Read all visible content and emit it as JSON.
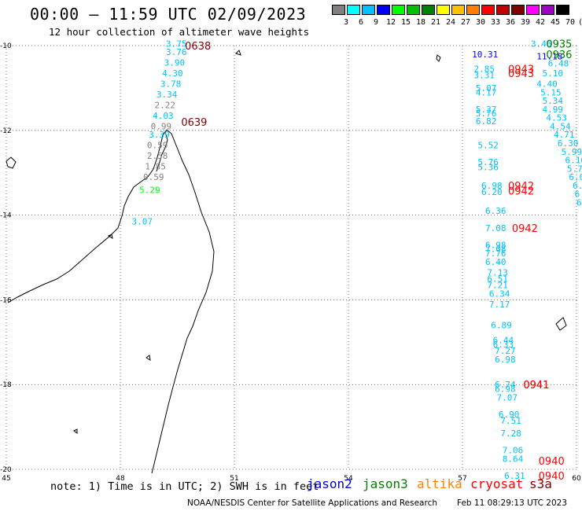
{
  "title": "00:00 – 11:59 UTC 02/09/2023",
  "subtitle": "12 hour collection of altimeter wave heights",
  "color_scale": {
    "colors": [
      "#808080",
      "#00ffff",
      "#00c0ff",
      "#0000ff",
      "#00ff00",
      "#00c000",
      "#008000",
      "#ffff00",
      "#ffc000",
      "#ff8000",
      "#ff0000",
      "#c00000",
      "#800000",
      "#ff00ff",
      "#a000c0",
      "#000000"
    ],
    "labels": [
      "3",
      "6",
      "9",
      "12",
      "15",
      "18",
      "21",
      "24",
      "27",
      "30",
      "33",
      "36",
      "39",
      "42",
      "45",
      "70",
      "(ft)"
    ]
  },
  "axes": {
    "lon_ticks": [
      "45",
      "48",
      "51",
      "54",
      "57",
      "60"
    ],
    "lat_ticks": [
      "-10",
      "-12",
      "-14",
      "-16",
      "-18",
      "-20"
    ]
  },
  "chart_data": {
    "type": "scatter",
    "x_range": [
      45,
      60
    ],
    "y_range": [
      -20,
      -10
    ],
    "track_labels": [
      {
        "text": "0638",
        "lon": 49.7,
        "lat": -10.0,
        "color": "#800000"
      },
      {
        "text": "0639",
        "lon": 49.6,
        "lat": -11.8,
        "color": "#800000"
      },
      {
        "text": "0935",
        "lon": 59.2,
        "lat": -9.95,
        "color": "#008000"
      },
      {
        "text": "0936",
        "lon": 59.2,
        "lat": -10.2,
        "color": "#008000"
      },
      {
        "text": "0943",
        "lon": 58.2,
        "lat": -10.55,
        "color": "#ff0000"
      },
      {
        "text": "0943",
        "lon": 58.2,
        "lat": -10.65,
        "color": "#ff0000"
      },
      {
        "text": "0942",
        "lon": 58.2,
        "lat": -13.3,
        "color": "#ff0000"
      },
      {
        "text": "0942",
        "lon": 58.2,
        "lat": -13.42,
        "color": "#ff0000"
      },
      {
        "text": "0942",
        "lon": 58.3,
        "lat": -14.3,
        "color": "#ff0000"
      },
      {
        "text": "0941",
        "lon": 58.6,
        "lat": -18.0,
        "color": "#ff0000"
      },
      {
        "text": "0941",
        "lon": 58.6,
        "lat": -18.0,
        "color": "#ff0000"
      },
      {
        "text": "0940",
        "lon": 59.0,
        "lat": -19.8,
        "color": "#ff0000"
      },
      {
        "text": "0940",
        "lon": 59.0,
        "lat": -20.15,
        "color": "#ff0000"
      }
    ],
    "wave_heights": [
      {
        "v": "3.75",
        "lon": 49.2,
        "lat": -9.95,
        "c": "#00c0ff"
      },
      {
        "v": "3.76",
        "lon": 49.2,
        "lat": -10.15,
        "c": "#00c0ff"
      },
      {
        "v": "3.90",
        "lon": 49.15,
        "lat": -10.4,
        "c": "#00c0ff"
      },
      {
        "v": "4.30",
        "lon": 49.1,
        "lat": -10.65,
        "c": "#00c0ff"
      },
      {
        "v": "3.78",
        "lon": 49.05,
        "lat": -10.9,
        "c": "#00c0ff"
      },
      {
        "v": "3.34",
        "lon": 48.95,
        "lat": -11.15,
        "c": "#00c0ff"
      },
      {
        "v": "2.22",
        "lon": 48.9,
        "lat": -11.4,
        "c": "#808080"
      },
      {
        "v": "4.03",
        "lon": 48.85,
        "lat": -11.65,
        "c": "#00c0ff"
      },
      {
        "v": "0.99",
        "lon": 48.8,
        "lat": -11.9,
        "c": "#808080"
      },
      {
        "v": "3.39",
        "lon": 48.75,
        "lat": -12.1,
        "c": "#00c0ff"
      },
      {
        "v": "0.59",
        "lon": 48.7,
        "lat": -12.35,
        "c": "#808080"
      },
      {
        "v": "2.58",
        "lon": 48.7,
        "lat": -12.6,
        "c": "#808080"
      },
      {
        "v": "1.85",
        "lon": 48.65,
        "lat": -12.85,
        "c": "#808080"
      },
      {
        "v": "0.59",
        "lon": 48.6,
        "lat": -13.1,
        "c": "#808080"
      },
      {
        "v": "5.29",
        "lon": 48.5,
        "lat": -13.4,
        "c": "#00ff00"
      },
      {
        "v": "3.07",
        "lon": 48.3,
        "lat": -14.15,
        "c": "#00c0ff"
      },
      {
        "v": "3.46",
        "lon": 58.8,
        "lat": -9.95,
        "c": "#00c0ff"
      },
      {
        "v": "10.31",
        "lon": 57.25,
        "lat": -10.2,
        "c": "#0000ff"
      },
      {
        "v": "11.18",
        "lon": 58.95,
        "lat": -10.25,
        "c": "#0000ff"
      },
      {
        "v": "6.48",
        "lon": 59.25,
        "lat": -10.42,
        "c": "#00c0ff"
      },
      {
        "v": "2.85",
        "lon": 57.3,
        "lat": -10.55,
        "c": "#00c0ff"
      },
      {
        "v": "3.31",
        "lon": 57.3,
        "lat": -10.7,
        "c": "#00c0ff"
      },
      {
        "v": "5.10",
        "lon": 59.1,
        "lat": -10.65,
        "c": "#00c0ff"
      },
      {
        "v": "4.40",
        "lon": 58.95,
        "lat": -10.9,
        "c": "#00c0ff"
      },
      {
        "v": "5.07",
        "lon": 57.35,
        "lat": -11.0,
        "c": "#00c0ff"
      },
      {
        "v": "4.17",
        "lon": 57.35,
        "lat": -11.1,
        "c": "#00c0ff"
      },
      {
        "v": "5.15",
        "lon": 59.05,
        "lat": -11.1,
        "c": "#00c0ff"
      },
      {
        "v": "5.34",
        "lon": 59.1,
        "lat": -11.3,
        "c": "#00c0ff"
      },
      {
        "v": "5.37",
        "lon": 57.35,
        "lat": -11.5,
        "c": "#00c0ff"
      },
      {
        "v": "4.99",
        "lon": 59.1,
        "lat": -11.5,
        "c": "#00c0ff"
      },
      {
        "v": "5.76",
        "lon": 57.35,
        "lat": -11.6,
        "c": "#00c0ff"
      },
      {
        "v": "4.53",
        "lon": 59.2,
        "lat": -11.7,
        "c": "#00c0ff"
      },
      {
        "v": "6.82",
        "lon": 57.35,
        "lat": -11.78,
        "c": "#00c0ff"
      },
      {
        "v": "4.54",
        "lon": 59.3,
        "lat": -11.9,
        "c": "#00c0ff"
      },
      {
        "v": "4.71",
        "lon": 59.4,
        "lat": -12.1,
        "c": "#00c0ff"
      },
      {
        "v": "5.52",
        "lon": 57.4,
        "lat": -12.35,
        "c": "#00c0ff"
      },
      {
        "v": "6.30",
        "lon": 59.5,
        "lat": -12.3,
        "c": "#00c0ff"
      },
      {
        "v": "5.99",
        "lon": 59.6,
        "lat": -12.5,
        "c": "#00c0ff"
      },
      {
        "v": "5.76",
        "lon": 57.4,
        "lat": -12.75,
        "c": "#00c0ff"
      },
      {
        "v": "5.36",
        "lon": 57.4,
        "lat": -12.87,
        "c": "#00c0ff"
      },
      {
        "v": "6.16",
        "lon": 59.7,
        "lat": -12.7,
        "c": "#00c0ff"
      },
      {
        "v": "5.74",
        "lon": 59.75,
        "lat": -12.9,
        "c": "#00c0ff"
      },
      {
        "v": "6.02",
        "lon": 59.8,
        "lat": -13.1,
        "c": "#00c0ff"
      },
      {
        "v": "6.14",
        "lon": 59.9,
        "lat": -13.3,
        "c": "#00c0ff"
      },
      {
        "v": "6.98",
        "lon": 57.5,
        "lat": -13.3,
        "c": "#00c0ff"
      },
      {
        "v": "6.20",
        "lon": 57.5,
        "lat": -13.45,
        "c": "#00c0ff"
      },
      {
        "v": "6.32",
        "lon": 59.95,
        "lat": -13.5,
        "c": "#00c0ff"
      },
      {
        "v": "6.33",
        "lon": 60.0,
        "lat": -13.7,
        "c": "#00c0ff"
      },
      {
        "v": "6.36",
        "lon": 57.6,
        "lat": -13.9,
        "c": "#00c0ff"
      },
      {
        "v": "7.08",
        "lon": 57.6,
        "lat": -14.3,
        "c": "#00c0ff"
      },
      {
        "v": "6.98",
        "lon": 57.6,
        "lat": -14.7,
        "c": "#00c0ff"
      },
      {
        "v": "7.08",
        "lon": 57.6,
        "lat": -14.8,
        "c": "#00c0ff"
      },
      {
        "v": "7.76",
        "lon": 57.6,
        "lat": -14.9,
        "c": "#00c0ff"
      },
      {
        "v": "6.40",
        "lon": 57.6,
        "lat": -15.1,
        "c": "#00c0ff"
      },
      {
        "v": "7.13",
        "lon": 57.65,
        "lat": -15.35,
        "c": "#00c0ff"
      },
      {
        "v": "6.51",
        "lon": 57.65,
        "lat": -15.5,
        "c": "#00c0ff"
      },
      {
        "v": "7.21",
        "lon": 57.65,
        "lat": -15.65,
        "c": "#00c0ff"
      },
      {
        "v": "6.34",
        "lon": 57.7,
        "lat": -15.85,
        "c": "#00c0ff"
      },
      {
        "v": "7.17",
        "lon": 57.7,
        "lat": -16.1,
        "c": "#00c0ff"
      },
      {
        "v": "6.89",
        "lon": 57.75,
        "lat": -16.6,
        "c": "#00c0ff"
      },
      {
        "v": "6.44",
        "lon": 57.8,
        "lat": -16.95,
        "c": "#00c0ff"
      },
      {
        "v": "6.33",
        "lon": 57.8,
        "lat": -17.05,
        "c": "#00c0ff"
      },
      {
        "v": "7.27",
        "lon": 57.85,
        "lat": -17.2,
        "c": "#00c0ff"
      },
      {
        "v": "6.98",
        "lon": 57.85,
        "lat": -17.4,
        "c": "#00c0ff"
      },
      {
        "v": "6.74",
        "lon": 57.85,
        "lat": -18.0,
        "c": "#00c0ff"
      },
      {
        "v": "6.98",
        "lon": 57.85,
        "lat": -18.1,
        "c": "#00c0ff"
      },
      {
        "v": "7.07",
        "lon": 57.9,
        "lat": -18.3,
        "c": "#00c0ff"
      },
      {
        "v": "6.90",
        "lon": 57.95,
        "lat": -18.7,
        "c": "#00c0ff"
      },
      {
        "v": "7.51",
        "lon": 58.0,
        "lat": -18.85,
        "c": "#00c0ff"
      },
      {
        "v": "7.28",
        "lon": 58.0,
        "lat": -19.15,
        "c": "#00c0ff"
      },
      {
        "v": "7.06",
        "lon": 58.05,
        "lat": -19.55,
        "c": "#00c0ff"
      },
      {
        "v": "8.64",
        "lon": 58.05,
        "lat": -19.75,
        "c": "#00c0ff"
      },
      {
        "v": "6.31",
        "lon": 58.1,
        "lat": -20.15,
        "c": "#00c0ff"
      }
    ]
  },
  "note": "note: 1) Time is in UTC; 2) SWH is in feet",
  "satellites": [
    {
      "name": "jason2",
      "color": "#0000cc"
    },
    {
      "name": "jason3",
      "color": "#008000"
    },
    {
      "name": "altika",
      "color": "#ff8000"
    },
    {
      "name": "cryosat",
      "color": "#ff0000"
    },
    {
      "name": "s3a",
      "color": "#800000"
    }
  ],
  "credit": "NOAA/NESDIS Center for Satellite Applications and Research",
  "timestamp": "Feb 11 08:29:13 UTC 2023"
}
